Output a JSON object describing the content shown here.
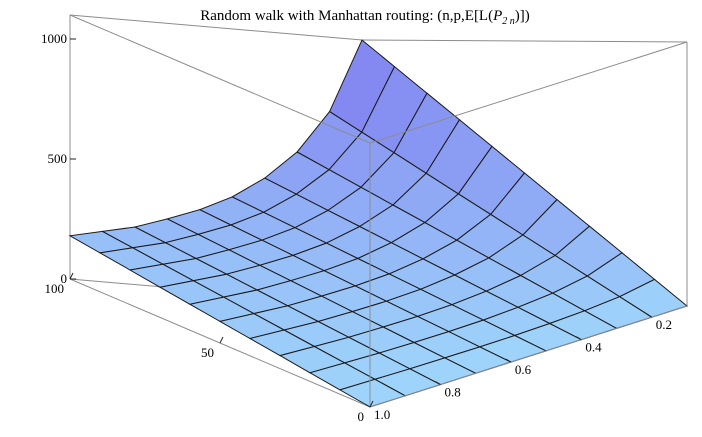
{
  "chart_data": {
    "type": "surface3d",
    "title_main": "Random walk with Manhattan routing: (n,p,E[L(",
    "title_var": "P",
    "title_sub": "2 n",
    "title_end": ")])",
    "axes": {
      "n": {
        "range": [
          0,
          100
        ],
        "ticks": [
          100,
          50,
          0
        ]
      },
      "p": {
        "range": [
          0.1,
          1.0
        ],
        "ticks": [
          0.2,
          0.4,
          0.6,
          0.8,
          1.0
        ],
        "tick_labels": [
          "0.2",
          "0.4",
          "0.6",
          "0.8",
          "1.0"
        ]
      },
      "z": {
        "range": [
          0,
          1100
        ],
        "ticks": [
          0,
          500,
          1000
        ]
      }
    },
    "surface": {
      "n_grid": [
        0,
        10,
        20,
        30,
        40,
        50,
        60,
        70,
        80,
        90,
        100
      ],
      "p_grid": [
        0.1,
        0.2,
        0.3,
        0.4,
        0.5,
        0.6,
        0.7,
        0.8,
        0.9,
        1.0
      ],
      "z_at_n100": [
        1100,
        790,
        610,
        490,
        400,
        335,
        285,
        240,
        210,
        180
      ],
      "z_relation": "linear in n, zero at n=0"
    },
    "colors": {
      "low": "#9fd6fb",
      "high": "#7f7bef",
      "grid": "#1a1a1a",
      "box": "#8c8c8c"
    }
  }
}
